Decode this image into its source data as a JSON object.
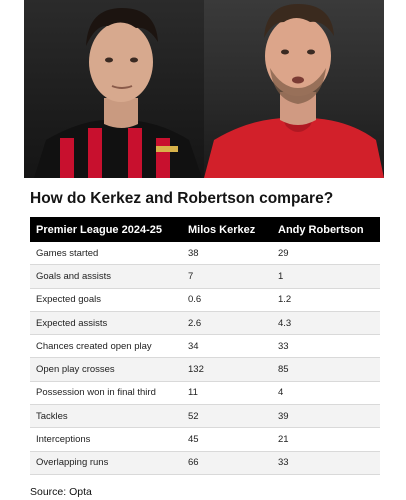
{
  "photos": {
    "left_alt": "Milos Kerkez",
    "right_alt": "Andy Robertson"
  },
  "title": "How do Kerkez and Robertson compare?",
  "table": {
    "headers": [
      "Premier League 2024-25",
      "Milos Kerkez",
      "Andy Robertson"
    ],
    "rows": [
      [
        "Games started",
        "38",
        "29"
      ],
      [
        "Goals and assists",
        "7",
        "1"
      ],
      [
        "Expected goals",
        "0.6",
        "1.2"
      ],
      [
        "Expected assists",
        "2.6",
        "4.3"
      ],
      [
        "Chances created open play",
        "34",
        "33"
      ],
      [
        "Open play crosses",
        "132",
        "85"
      ],
      [
        "Possession won in final third",
        "11",
        "4"
      ],
      [
        "Tackles",
        "52",
        "39"
      ],
      [
        "Interceptions",
        "45",
        "21"
      ],
      [
        "Overlapping runs",
        "66",
        "33"
      ]
    ]
  },
  "source": "Source: Opta",
  "colors": {
    "header_bg": "#000000",
    "left_kit_red": "#c8102e",
    "right_kit_red": "#d2202a"
  }
}
